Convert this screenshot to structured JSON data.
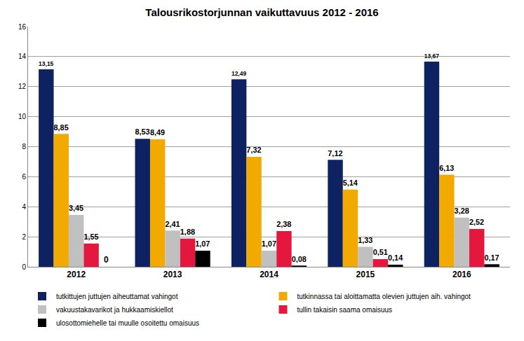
{
  "chart_data": {
    "type": "bar",
    "title": "Talousrikostorjunnan vaikuttavuus 2012 - 2016",
    "categories": [
      "2012",
      "2013",
      "2014",
      "2015",
      "2016"
    ],
    "series": [
      {
        "name": "tutkittujen juttujen aiheuttamat vahingot",
        "color": "#0e2160",
        "values": [
          13.15,
          8.53,
          12.49,
          7.12,
          13.67
        ],
        "value_labels": [
          "13,15",
          "8,53",
          "12,49",
          "7,12",
          "13,67"
        ]
      },
      {
        "name": "tutkinnassa tai aloittamatta olevien juttujen aih. vahingot",
        "color": "#f2a900",
        "values": [
          8.85,
          8.49,
          7.32,
          5.14,
          6.13
        ],
        "value_labels": [
          "8,85",
          "8,49",
          "7,32",
          "5,14",
          "6,13"
        ]
      },
      {
        "name": "vakuustakavarikot ja hukkaamiskiellot",
        "color": "#c0c0c0",
        "values": [
          3.45,
          2.41,
          1.07,
          1.33,
          3.28
        ],
        "value_labels": [
          "3,45",
          "2,41",
          "1,07",
          "1,33",
          "3,28"
        ]
      },
      {
        "name": "tullin takaisin saama omaisuus",
        "color": "#e4173e",
        "values": [
          1.55,
          1.88,
          2.38,
          0.51,
          2.52
        ],
        "value_labels": [
          "1,55",
          "1,88",
          "2,38",
          "0,51",
          "2,52"
        ]
      },
      {
        "name": "ulosottomiehelle tai muulle osoitettu omaisuus",
        "color": "#000000",
        "values": [
          0,
          1.07,
          0.08,
          0.14,
          0.17
        ],
        "value_labels": [
          "0",
          "1,07",
          "0,08",
          "0,14",
          "0,17"
        ]
      }
    ],
    "ylim": [
      0,
      16
    ],
    "yticks": [
      0,
      2,
      4,
      6,
      8,
      10,
      12,
      14,
      16
    ],
    "grid": true,
    "legend": "bottom",
    "data_labels": true
  }
}
